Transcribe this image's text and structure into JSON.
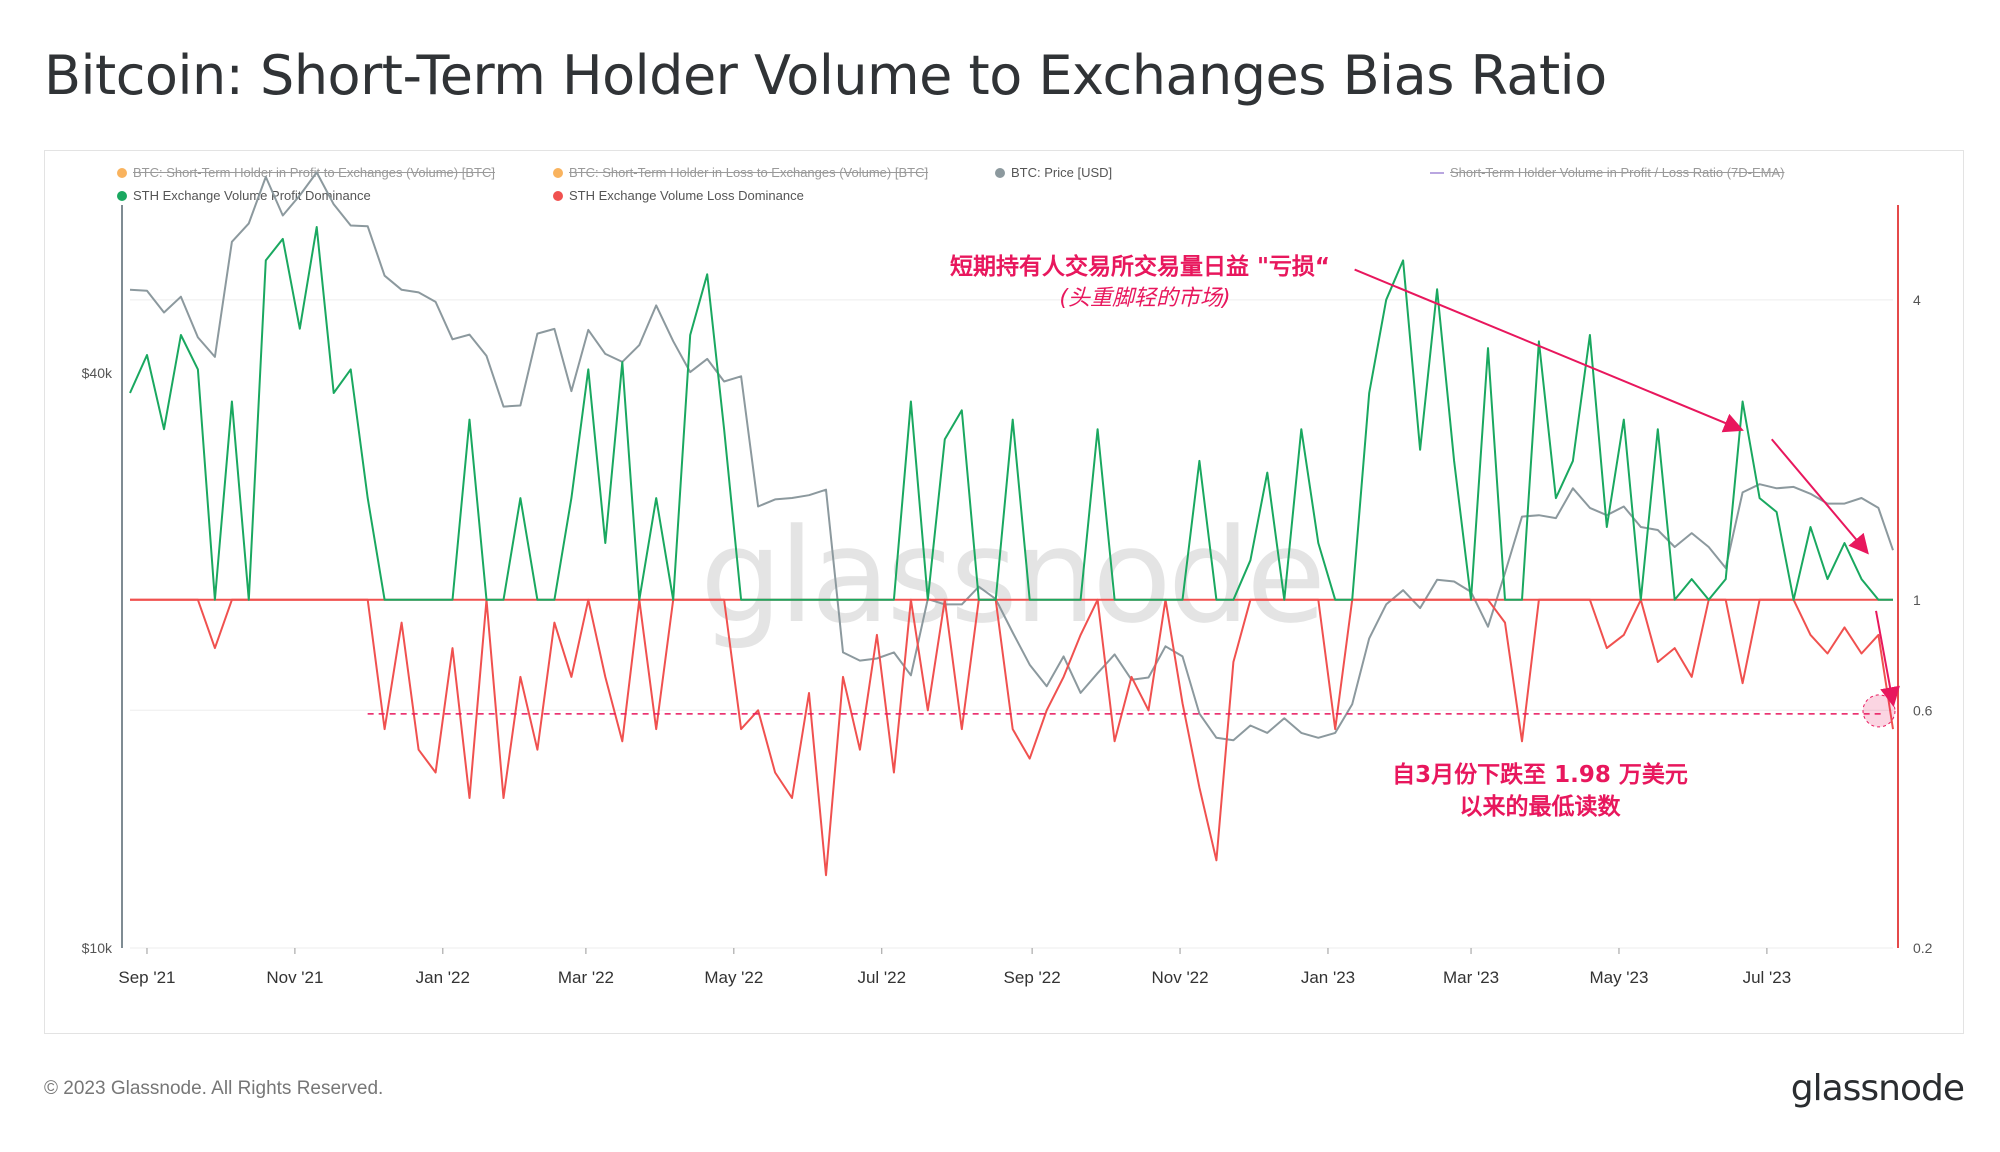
{
  "title": "Bitcoin: Short-Term Holder Volume to Exchanges Bias Ratio",
  "legend": [
    {
      "label": "BTC: Short-Term Holder in Profit to Exchanges (Volume) [BTC]",
      "color": "#f7931a",
      "disabled": true,
      "shape": "dot"
    },
    {
      "label": "BTC: Short-Term Holder in Loss to Exchanges (Volume) [BTC]",
      "color": "#f7931a",
      "disabled": true,
      "shape": "dot"
    },
    {
      "label": "BTC: Price [USD]",
      "color": "#8c999e",
      "disabled": false,
      "shape": "dot"
    },
    {
      "label": "Short-Term Holder Volume in Profit / Loss Ratio (7D-EMA)",
      "color": "#b9a6e0",
      "disabled": true,
      "shape": "line"
    },
    {
      "label": "STH Exchange Volume Profit Dominance",
      "color": "#1aa860",
      "disabled": false,
      "shape": "dot"
    },
    {
      "label": "STH Exchange Volume Loss Dominance",
      "color": "#f0514f",
      "disabled": false,
      "shape": "dot"
    }
  ],
  "annotations": {
    "top_main": "短期持有人交易所交易量日益 \"亏损“",
    "top_sub": "(头重脚轻的市场)",
    "bottom_line1": "自3月份下跌至 1.98 万美元",
    "bottom_line2": "以来的最低读数"
  },
  "watermark": "glassnode",
  "footer": {
    "copyright": "© 2023 Glassnode. All Rights Reserved.",
    "logo": "glassnode"
  },
  "colors": {
    "profit": "#1aa860",
    "loss": "#f0514f",
    "price": "#8c999e",
    "annotation": "#e8175d",
    "right_axis": "#e54a4a",
    "left_axis": "#7f8c93"
  },
  "chart_data": {
    "type": "line",
    "x_ticks": [
      "Sep '21",
      "Nov '21",
      "Jan '22",
      "Mar '22",
      "May '22",
      "Jul '22",
      "Sep '22",
      "Nov '22",
      "Jan '23",
      "Mar '23",
      "May '23",
      "Jul '23"
    ],
    "left_axis": {
      "label": "",
      "scale": "log",
      "ticks": [
        "$10k",
        "$40k"
      ],
      "range": [
        10000,
        60000
      ]
    },
    "right_axis": {
      "label": "",
      "scale": "log",
      "ticks": [
        "0.2",
        "0.6",
        "1",
        "4"
      ],
      "range": [
        0.2,
        6.2
      ]
    },
    "x_range": [
      "2021-08-25",
      "2023-08-22"
    ],
    "series": [
      {
        "name": "BTC: Price [USD]",
        "axis": "left",
        "color": "#8c999e",
        "dates": [
          "2021-08-25",
          "2021-09-01",
          "2021-09-08",
          "2021-09-15",
          "2021-09-22",
          "2021-09-29",
          "2021-10-06",
          "2021-10-13",
          "2021-10-20",
          "2021-10-27",
          "2021-11-03",
          "2021-11-10",
          "2021-11-17",
          "2021-11-24",
          "2021-12-01",
          "2021-12-08",
          "2021-12-15",
          "2021-12-22",
          "2021-12-29",
          "2022-01-05",
          "2022-01-12",
          "2022-01-19",
          "2022-01-26",
          "2022-02-02",
          "2022-02-09",
          "2022-02-16",
          "2022-02-23",
          "2022-03-02",
          "2022-03-09",
          "2022-03-16",
          "2022-03-23",
          "2022-03-30",
          "2022-04-06",
          "2022-04-13",
          "2022-04-20",
          "2022-04-27",
          "2022-05-04",
          "2022-05-11",
          "2022-05-18",
          "2022-05-25",
          "2022-06-01",
          "2022-06-08",
          "2022-06-15",
          "2022-06-22",
          "2022-06-29",
          "2022-07-06",
          "2022-07-13",
          "2022-07-20",
          "2022-07-27",
          "2022-08-03",
          "2022-08-10",
          "2022-08-17",
          "2022-08-24",
          "2022-08-31",
          "2022-09-07",
          "2022-09-14",
          "2022-09-21",
          "2022-09-28",
          "2022-10-05",
          "2022-10-12",
          "2022-10-19",
          "2022-10-26",
          "2022-11-02",
          "2022-11-09",
          "2022-11-16",
          "2022-11-23",
          "2022-11-30",
          "2022-12-07",
          "2022-12-14",
          "2022-12-21",
          "2022-12-28",
          "2023-01-04",
          "2023-01-11",
          "2023-01-18",
          "2023-01-25",
          "2023-02-01",
          "2023-02-08",
          "2023-02-15",
          "2023-02-22",
          "2023-03-01",
          "2023-03-08",
          "2023-03-15",
          "2023-03-22",
          "2023-03-29",
          "2023-04-05",
          "2023-04-12",
          "2023-04-19",
          "2023-04-26",
          "2023-05-03",
          "2023-05-10",
          "2023-05-17",
          "2023-05-24",
          "2023-05-31",
          "2023-06-07",
          "2023-06-14",
          "2023-06-21",
          "2023-06-28",
          "2023-07-05",
          "2023-07-12",
          "2023-07-19",
          "2023-07-26",
          "2023-08-02",
          "2023-08-09",
          "2023-08-16",
          "2023-08-22"
        ],
        "values": [
          48900,
          48800,
          46300,
          48100,
          43600,
          41600,
          54900,
          57400,
          64200,
          58500,
          61400,
          64900,
          60100,
          57100,
          57000,
          50600,
          48900,
          48600,
          47500,
          43400,
          43900,
          41700,
          36900,
          37000,
          44000,
          44500,
          38300,
          44400,
          41900,
          41100,
          42800,
          47100,
          43200,
          40100,
          41400,
          39200,
          39700,
          29000,
          29500,
          29600,
          29800,
          30200,
          20400,
          20000,
          20100,
          20400,
          19300,
          23200,
          22900,
          22900,
          23900,
          23200,
          21400,
          19800,
          18800,
          20200,
          18500,
          19400,
          20300,
          19100,
          19200,
          20700,
          20200,
          17600,
          16600,
          16500,
          17100,
          16800,
          17400,
          16800,
          16600,
          16800,
          18000,
          21100,
          22900,
          23700,
          22700,
          24300,
          24200,
          23600,
          21700,
          24700,
          28300,
          28400,
          28200,
          30300,
          28900,
          28400,
          29000,
          27600,
          27400,
          26300,
          27200,
          26300,
          25000,
          30000,
          30600,
          30300,
          30400,
          29900,
          29200,
          29200,
          29600,
          28900,
          26100
        ]
      },
      {
        "name": "STH Exchange Volume Profit Dominance",
        "axis": "right",
        "color": "#1aa860",
        "dates": [
          "2021-08-25",
          "2021-09-01",
          "2021-09-08",
          "2021-09-15",
          "2021-09-22",
          "2021-09-29",
          "2021-10-06",
          "2021-10-13",
          "2021-10-20",
          "2021-10-27",
          "2021-11-03",
          "2021-11-10",
          "2021-11-17",
          "2021-11-24",
          "2021-12-01",
          "2021-12-08",
          "2021-12-15",
          "2021-12-22",
          "2021-12-29",
          "2022-01-05",
          "2022-01-12",
          "2022-01-19",
          "2022-01-26",
          "2022-02-02",
          "2022-02-09",
          "2022-02-16",
          "2022-02-23",
          "2022-03-02",
          "2022-03-09",
          "2022-03-16",
          "2022-03-23",
          "2022-03-30",
          "2022-04-06",
          "2022-04-13",
          "2022-04-20",
          "2022-04-27",
          "2022-05-04",
          "2022-05-11",
          "2022-05-18",
          "2022-05-25",
          "2022-06-01",
          "2022-06-08",
          "2022-06-15",
          "2022-06-22",
          "2022-06-29",
          "2022-07-06",
          "2022-07-13",
          "2022-07-20",
          "2022-07-27",
          "2022-08-03",
          "2022-08-10",
          "2022-08-17",
          "2022-08-24",
          "2022-08-31",
          "2022-09-07",
          "2022-09-14",
          "2022-09-21",
          "2022-09-28",
          "2022-10-05",
          "2022-10-12",
          "2022-10-19",
          "2022-10-26",
          "2022-11-02",
          "2022-11-09",
          "2022-11-16",
          "2022-11-23",
          "2022-11-30",
          "2022-12-07",
          "2022-12-14",
          "2022-12-21",
          "2022-12-28",
          "2023-01-04",
          "2023-01-11",
          "2023-01-18",
          "2023-01-25",
          "2023-02-01",
          "2023-02-08",
          "2023-02-15",
          "2023-02-22",
          "2023-03-01",
          "2023-03-08",
          "2023-03-15",
          "2023-03-22",
          "2023-03-29",
          "2023-04-05",
          "2023-04-12",
          "2023-04-19",
          "2023-04-26",
          "2023-05-03",
          "2023-05-10",
          "2023-05-17",
          "2023-05-24",
          "2023-05-31",
          "2023-06-07",
          "2023-06-14",
          "2023-06-21",
          "2023-06-28",
          "2023-07-05",
          "2023-07-12",
          "2023-07-19",
          "2023-07-26",
          "2023-08-02",
          "2023-08-09",
          "2023-08-16",
          "2023-08-22"
        ],
        "values": [
          2.6,
          3.1,
          2.2,
          3.4,
          2.9,
          1.0,
          2.5,
          1.0,
          4.8,
          5.3,
          3.5,
          5.6,
          2.6,
          2.9,
          1.6,
          1.0,
          1.0,
          1.0,
          1.0,
          1.0,
          2.3,
          1.0,
          1.0,
          1.6,
          1.0,
          1.0,
          1.6,
          2.9,
          1.3,
          3.0,
          1.0,
          1.6,
          1.0,
          3.4,
          4.5,
          2.2,
          1.0,
          1.0,
          1.0,
          1.0,
          1.0,
          1.0,
          1.0,
          1.0,
          1.0,
          1.0,
          2.5,
          1.0,
          2.1,
          2.4,
          1.0,
          1.0,
          2.3,
          1.0,
          1.0,
          1.0,
          1.0,
          2.2,
          1.0,
          1.0,
          1.0,
          1.0,
          1.0,
          1.9,
          1.0,
          1.0,
          1.2,
          1.8,
          1.0,
          2.2,
          1.3,
          1.0,
          1.0,
          2.6,
          4.0,
          4.8,
          2.0,
          4.2,
          1.9,
          1.0,
          3.2,
          1.0,
          1.0,
          3.3,
          1.6,
          1.9,
          3.4,
          1.4,
          2.3,
          1.0,
          2.2,
          1.0,
          1.1,
          1.0,
          1.1,
          2.5,
          1.6,
          1.5,
          1.0,
          1.4,
          1.1,
          1.3,
          1.1,
          1.0,
          1.0
        ]
      },
      {
        "name": "STH Exchange Volume Loss Dominance",
        "axis": "right",
        "color": "#f0514f",
        "dates": [
          "2021-08-25",
          "2021-09-01",
          "2021-09-08",
          "2021-09-15",
          "2021-09-22",
          "2021-09-29",
          "2021-10-06",
          "2021-10-13",
          "2021-10-20",
          "2021-10-27",
          "2021-11-03",
          "2021-11-10",
          "2021-11-17",
          "2021-11-24",
          "2021-12-01",
          "2021-12-08",
          "2021-12-15",
          "2021-12-22",
          "2021-12-29",
          "2022-01-05",
          "2022-01-12",
          "2022-01-19",
          "2022-01-26",
          "2022-02-02",
          "2022-02-09",
          "2022-02-16",
          "2022-02-23",
          "2022-03-02",
          "2022-03-09",
          "2022-03-16",
          "2022-03-23",
          "2022-03-30",
          "2022-04-06",
          "2022-04-13",
          "2022-04-20",
          "2022-04-27",
          "2022-05-04",
          "2022-05-11",
          "2022-05-18",
          "2022-05-25",
          "2022-06-01",
          "2022-06-08",
          "2022-06-15",
          "2022-06-22",
          "2022-06-29",
          "2022-07-06",
          "2022-07-13",
          "2022-07-20",
          "2022-07-27",
          "2022-08-03",
          "2022-08-10",
          "2022-08-17",
          "2022-08-24",
          "2022-08-31",
          "2022-09-07",
          "2022-09-14",
          "2022-09-21",
          "2022-09-28",
          "2022-10-05",
          "2022-10-12",
          "2022-10-19",
          "2022-10-26",
          "2022-11-02",
          "2022-11-09",
          "2022-11-16",
          "2022-11-23",
          "2022-11-30",
          "2022-12-07",
          "2022-12-14",
          "2022-12-21",
          "2022-12-28",
          "2023-01-04",
          "2023-01-11",
          "2023-01-18",
          "2023-01-25",
          "2023-02-01",
          "2023-02-08",
          "2023-02-15",
          "2023-02-22",
          "2023-03-01",
          "2023-03-08",
          "2023-03-15",
          "2023-03-22",
          "2023-03-29",
          "2023-04-05",
          "2023-04-12",
          "2023-04-19",
          "2023-04-26",
          "2023-05-03",
          "2023-05-10",
          "2023-05-17",
          "2023-05-24",
          "2023-05-31",
          "2023-06-07",
          "2023-06-14",
          "2023-06-21",
          "2023-06-28",
          "2023-07-05",
          "2023-07-12",
          "2023-07-19",
          "2023-07-26",
          "2023-08-02",
          "2023-08-09",
          "2023-08-16",
          "2023-08-22"
        ],
        "values": [
          1.0,
          1.0,
          1.0,
          1.0,
          1.0,
          0.8,
          1.0,
          1.0,
          1.0,
          1.0,
          1.0,
          1.0,
          1.0,
          1.0,
          1.0,
          0.55,
          0.9,
          0.5,
          0.45,
          0.8,
          0.4,
          1.0,
          0.4,
          0.7,
          0.5,
          0.9,
          0.7,
          1.0,
          0.7,
          0.52,
          1.0,
          0.55,
          1.0,
          1.0,
          1.0,
          1.0,
          0.55,
          0.6,
          0.45,
          0.4,
          0.65,
          0.28,
          0.7,
          0.5,
          0.85,
          0.45,
          1.0,
          0.6,
          1.0,
          0.55,
          1.0,
          1.0,
          0.55,
          0.48,
          0.6,
          0.7,
          0.85,
          1.0,
          0.52,
          0.7,
          0.6,
          1.0,
          0.62,
          0.42,
          0.3,
          0.75,
          1.0,
          1.0,
          1.0,
          1.0,
          1.0,
          0.55,
          1.0,
          1.0,
          1.0,
          1.0,
          1.0,
          1.0,
          1.0,
          1.0,
          1.0,
          0.9,
          0.52,
          1.0,
          1.0,
          1.0,
          1.0,
          0.8,
          0.85,
          1.0,
          0.75,
          0.8,
          0.7,
          1.0,
          1.0,
          0.68,
          1.0,
          1.0,
          1.0,
          0.85,
          0.78,
          0.88,
          0.78,
          0.85,
          0.55
        ]
      }
    ],
    "threshold_line": {
      "value": 0.59,
      "style": "dashed",
      "color": "#e8175d"
    },
    "baseline": {
      "value": 1,
      "color": "#f0514f"
    },
    "trend_arrows": [
      {
        "from_date": "2023-01-12",
        "from_value": 4.6,
        "to_date": "2023-06-20",
        "to_value": 2.2
      },
      {
        "from_date": "2023-07-03",
        "from_value": 2.1,
        "to_date": "2023-08-11",
        "to_value": 1.25
      },
      {
        "from_date": "2023-08-15",
        "from_value": 0.95,
        "to_date": "2023-08-22",
        "to_value": 0.62
      }
    ]
  }
}
